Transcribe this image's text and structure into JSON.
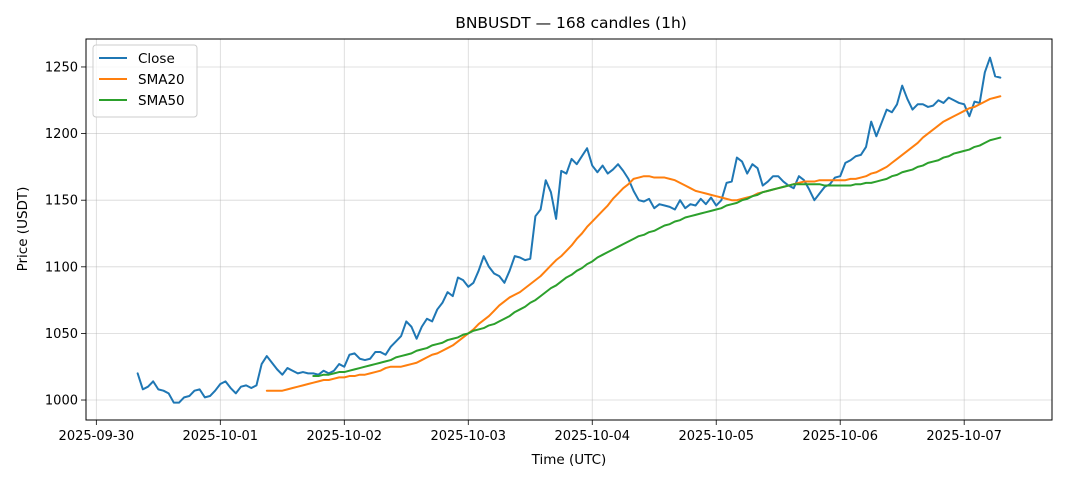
{
  "chart_data": {
    "type": "line",
    "title": "BNBUSDT — 168 candles (1h)",
    "xlabel": "Time (UTC)",
    "ylabel": "Price (USDT)",
    "x_ticks": [
      "2025-09-30",
      "2025-10-01",
      "2025-10-02",
      "2025-10-03",
      "2025-10-04",
      "2025-10-05",
      "2025-10-06",
      "2025-10-07"
    ],
    "y_ticks": [
      1000,
      1050,
      1100,
      1150,
      1200,
      1250
    ],
    "x_start": "2025-09-30T08:00",
    "x_end": "2025-10-07T07:00",
    "x_step_hours": 1,
    "xlim": [
      "2025-09-29T22:00",
      "2025-10-07T17:00"
    ],
    "ylim": [
      985,
      1271
    ],
    "grid": true,
    "legend_position": "top-left",
    "colors": {
      "close": "#1f77b4",
      "sma20": "#ff7f0e",
      "sma50": "#2ca02c"
    },
    "series": [
      {
        "name": "Close",
        "values": [
          1020,
          1008,
          1010,
          1014,
          1008,
          1007,
          1005,
          998,
          998,
          1002,
          1003,
          1007,
          1008,
          1002,
          1003,
          1007,
          1012,
          1014,
          1009,
          1005,
          1010,
          1011,
          1009,
          1011,
          1027,
          1033,
          1028,
          1023,
          1019,
          1024,
          1022,
          1020,
          1021,
          1020,
          1020,
          1019,
          1022,
          1020,
          1022,
          1027,
          1025,
          1034,
          1035,
          1031,
          1030,
          1031,
          1036,
          1036,
          1034,
          1040,
          1044,
          1048,
          1059,
          1055,
          1046,
          1055,
          1061,
          1059,
          1068,
          1073,
          1081,
          1078,
          1092,
          1090,
          1085,
          1088,
          1097,
          1108,
          1100,
          1095,
          1093,
          1088,
          1097,
          1108,
          1107,
          1105,
          1106,
          1138,
          1143,
          1165,
          1156,
          1136,
          1172,
          1170,
          1181,
          1177,
          1183,
          1189,
          1176,
          1171,
          1176,
          1170,
          1173,
          1177,
          1172,
          1166,
          1157,
          1150,
          1149,
          1151,
          1144,
          1147,
          1146,
          1145,
          1143,
          1150,
          1144,
          1147,
          1146,
          1151,
          1147,
          1152,
          1146,
          1150,
          1163,
          1164,
          1182,
          1179,
          1170,
          1177,
          1174,
          1161,
          1164,
          1168,
          1168,
          1164,
          1161,
          1159,
          1168,
          1165,
          1158,
          1150,
          1155,
          1160,
          1162,
          1167,
          1168,
          1178,
          1180,
          1183,
          1184,
          1190,
          1209,
          1198,
          1208,
          1218,
          1216,
          1222,
          1236,
          1226,
          1218,
          1222,
          1222,
          1220,
          1221,
          1225,
          1223,
          1227,
          1225,
          1223,
          1222,
          1213,
          1224,
          1223,
          1246,
          1257,
          1243,
          1242
        ]
      },
      {
        "name": "SMA20",
        "values": [
          1007,
          1007,
          1007,
          1007,
          1008,
          1009,
          1010,
          1011,
          1012,
          1013,
          1014,
          1015,
          1015,
          1016,
          1017,
          1017,
          1018,
          1018,
          1019,
          1019,
          1020,
          1021,
          1022,
          1024,
          1025,
          1025,
          1025,
          1026,
          1027,
          1028,
          1030,
          1032,
          1034,
          1035,
          1037,
          1039,
          1041,
          1044,
          1047,
          1050,
          1053,
          1057,
          1060,
          1063,
          1067,
          1071,
          1074,
          1077,
          1079,
          1081,
          1084,
          1087,
          1090,
          1093,
          1097,
          1101,
          1105,
          1108,
          1112,
          1116,
          1121,
          1125,
          1130,
          1134,
          1138,
          1142,
          1146,
          1151,
          1155,
          1159,
          1162,
          1166,
          1167,
          1168,
          1168,
          1167,
          1167,
          1167,
          1166,
          1165,
          1163,
          1161,
          1159,
          1157,
          1156,
          1155,
          1154,
          1153,
          1152,
          1151,
          1150,
          1150,
          1151,
          1152,
          1153,
          1155,
          1156,
          1157,
          1158,
          1159,
          1160,
          1161,
          1162,
          1163,
          1164,
          1164,
          1164,
          1165,
          1165,
          1165,
          1165,
          1165,
          1165,
          1166,
          1166,
          1167,
          1168,
          1170,
          1171,
          1173,
          1175,
          1178,
          1181,
          1184,
          1187,
          1190,
          1193,
          1197,
          1200,
          1203,
          1206,
          1209,
          1211,
          1213,
          1215,
          1217,
          1219,
          1220,
          1222,
          1224,
          1226,
          1227,
          1228
        ]
      },
      {
        "name": "SMA50",
        "values": [
          1018,
          1018,
          1019,
          1019,
          1020,
          1021,
          1021,
          1022,
          1023,
          1024,
          1025,
          1026,
          1027,
          1028,
          1029,
          1030,
          1032,
          1033,
          1034,
          1035,
          1037,
          1038,
          1039,
          1041,
          1042,
          1043,
          1045,
          1046,
          1047,
          1049,
          1050,
          1052,
          1053,
          1054,
          1056,
          1057,
          1059,
          1061,
          1063,
          1066,
          1068,
          1070,
          1073,
          1075,
          1078,
          1081,
          1084,
          1086,
          1089,
          1092,
          1094,
          1097,
          1099,
          1102,
          1104,
          1107,
          1109,
          1111,
          1113,
          1115,
          1117,
          1119,
          1121,
          1123,
          1124,
          1126,
          1127,
          1129,
          1131,
          1132,
          1134,
          1135,
          1137,
          1138,
          1139,
          1140,
          1141,
          1142,
          1143,
          1144,
          1146,
          1147,
          1148,
          1150,
          1151,
          1153,
          1154,
          1156,
          1157,
          1158,
          1159,
          1160,
          1161,
          1162,
          1162,
          1162,
          1162,
          1162,
          1162,
          1161,
          1161,
          1161,
          1161,
          1161,
          1161,
          1162,
          1162,
          1163,
          1163,
          1164,
          1165,
          1166,
          1168,
          1169,
          1171,
          1172,
          1173,
          1175,
          1176,
          1178,
          1179,
          1180,
          1182,
          1183,
          1185,
          1186,
          1187,
          1188,
          1190,
          1191,
          1193,
          1195,
          1196,
          1197
        ]
      }
    ]
  }
}
